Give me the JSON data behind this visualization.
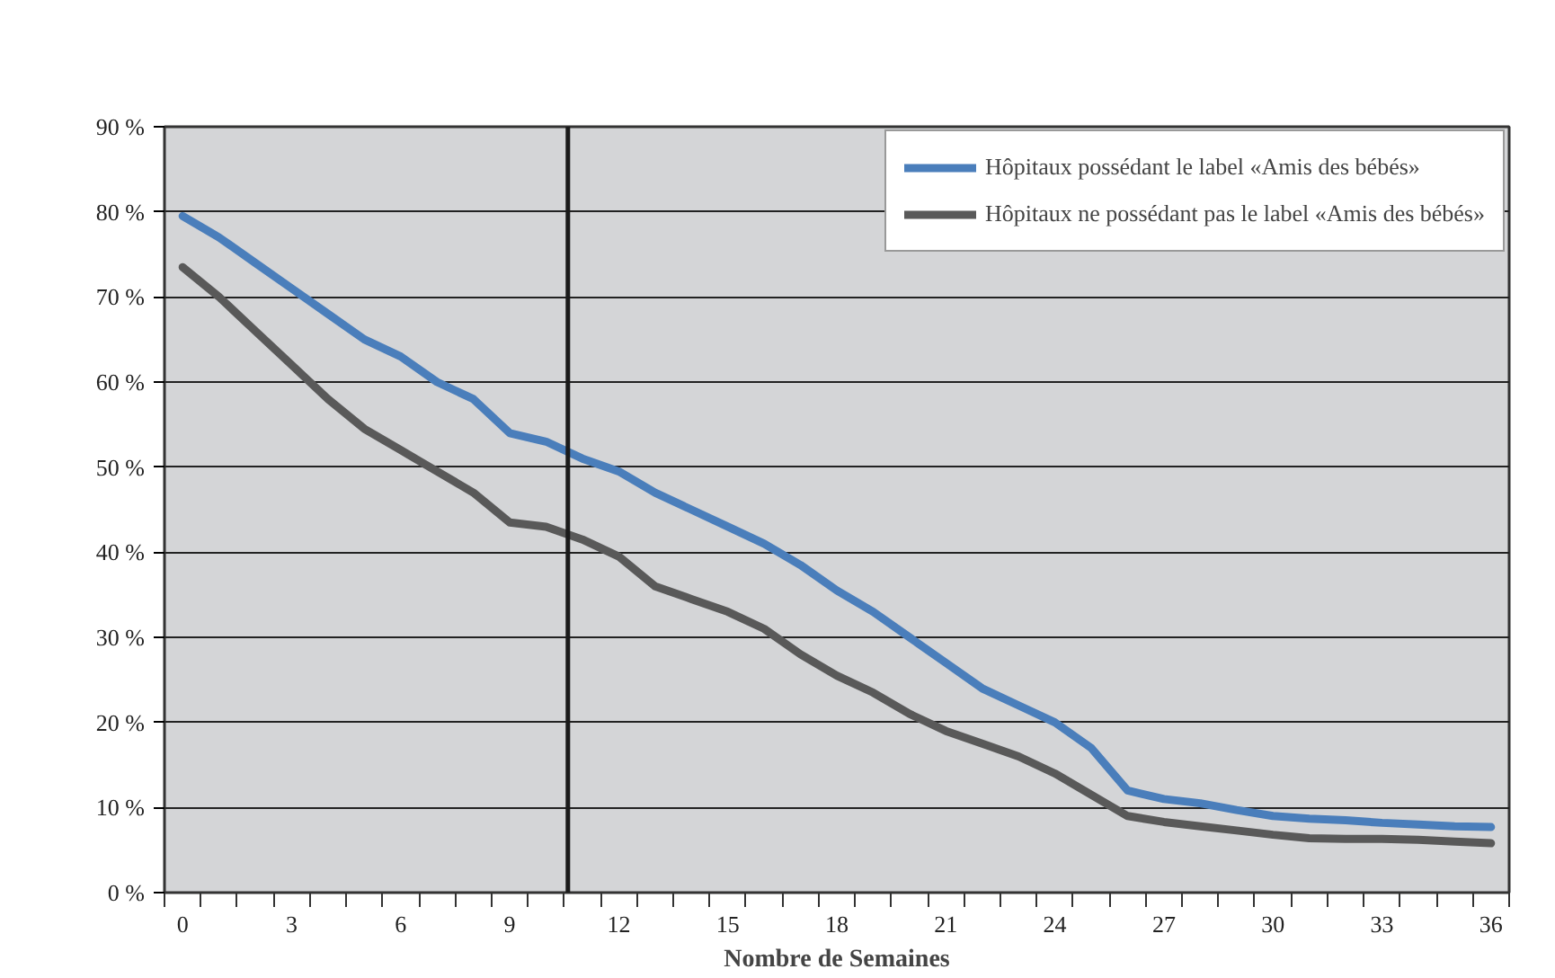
{
  "chart_data": {
    "type": "line",
    "xlabel": "Nombre de Semaines",
    "x": [
      0,
      1,
      2,
      3,
      4,
      5,
      6,
      7,
      8,
      9,
      10,
      11,
      12,
      13,
      14,
      15,
      16,
      17,
      18,
      19,
      20,
      21,
      22,
      23,
      24,
      25,
      26,
      27,
      28,
      29,
      30,
      31,
      32,
      33,
      34,
      35,
      36
    ],
    "series": [
      {
        "name": "Hôpitaux possédant le label «Amis des bébés»",
        "color": "#4a7ebb",
        "values": [
          79.5,
          77,
          74,
          71,
          68,
          65,
          63,
          60,
          58,
          54,
          53,
          51,
          49.5,
          47,
          45,
          43,
          41,
          38.5,
          35.5,
          33,
          30,
          27,
          24,
          22,
          20,
          17,
          12,
          11,
          10.5,
          9.7,
          9,
          8.7,
          8.5,
          8.2,
          8,
          7.8,
          7.7
        ]
      },
      {
        "name": "Hôpitaux ne possédant pas le label «Amis des bébés»",
        "color": "#595959",
        "values": [
          73.5,
          70,
          66,
          62,
          58,
          54.5,
          52,
          49.5,
          47,
          43.5,
          43,
          41.5,
          39.5,
          36,
          34.5,
          33,
          31,
          28,
          25.5,
          23.5,
          21,
          19,
          17.5,
          16,
          14,
          11.5,
          9,
          8.3,
          7.8,
          7.3,
          6.8,
          6.4,
          6.3,
          6.3,
          6.2,
          6,
          5.8
        ]
      }
    ],
    "xlim": [
      -0.5,
      36.5
    ],
    "xticks": [
      0,
      3,
      6,
      9,
      12,
      15,
      18,
      21,
      24,
      27,
      30,
      33,
      36
    ],
    "ylim": [
      0,
      90
    ],
    "yticks": [
      {
        "value": 0,
        "label": "0 %"
      },
      {
        "value": 10,
        "label": "10 %"
      },
      {
        "value": 20,
        "label": "20 %"
      },
      {
        "value": 30,
        "label": "30 %"
      },
      {
        "value": 40,
        "label": "40 %"
      },
      {
        "value": 50,
        "label": "50 %"
      },
      {
        "value": 60,
        "label": "60 %"
      },
      {
        "value": 70,
        "label": "70 %"
      },
      {
        "value": 80,
        "label": "80 %"
      },
      {
        "value": 90,
        "label": "90 %"
      }
    ],
    "grid": "y",
    "legend": "top right",
    "line_style": "solid",
    "marker": "none",
    "ref_lines": [
      {
        "axis": "x",
        "value": 10.6,
        "color": "#1a1a1a"
      }
    ]
  }
}
